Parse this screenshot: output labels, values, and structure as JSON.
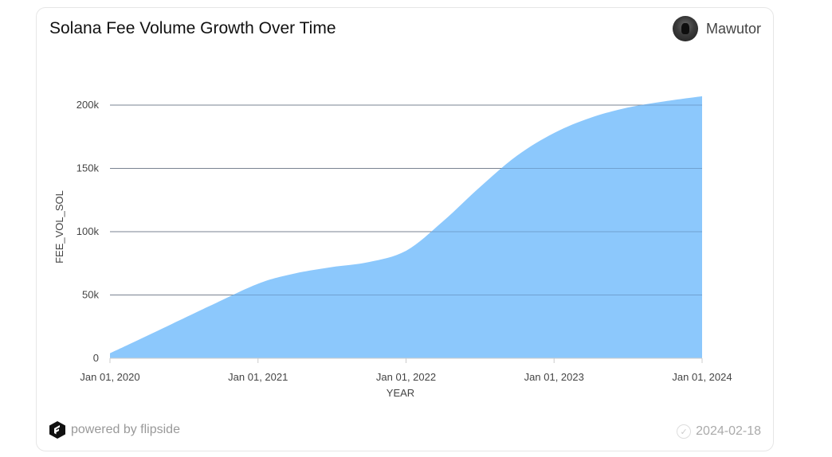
{
  "header": {
    "title": "Solana Fee Volume Growth Over Time",
    "author": "Mawutor"
  },
  "footer": {
    "powered_by": "powered by flipside",
    "date": "2024-02-18"
  },
  "colors": {
    "area_fill": "#8cc8fc",
    "grid": "#9a9a9a",
    "axis_text": "#444444"
  },
  "chart_data": {
    "type": "area",
    "title": "Solana Fee Volume Growth Over Time",
    "xlabel": "YEAR",
    "ylabel": "FEE_VOL_SOL",
    "x_ticks": [
      "Jan 01, 2020",
      "Jan 01, 2021",
      "Jan 01, 2022",
      "Jan 01, 2023",
      "Jan 01, 2024"
    ],
    "y_ticks": [
      "0",
      "50k",
      "100k",
      "150k",
      "200k"
    ],
    "y_tick_values": [
      0,
      50000,
      100000,
      150000,
      200000
    ],
    "ylim": [
      0,
      200000
    ],
    "grid": true,
    "series": [
      {
        "x": [
          "2020-01-01",
          "2020-03-01",
          "2020-06-01",
          "2020-09-01",
          "2021-01-01",
          "2021-04-01",
          "2021-07-01",
          "2021-10-01",
          "2022-01-01",
          "2022-04-01",
          "2022-07-01",
          "2022-10-01",
          "2023-01-01",
          "2023-04-01",
          "2023-07-01",
          "2023-10-01",
          "2024-01-01"
        ],
        "values": [
          4000,
          13000,
          27000,
          41000,
          59000,
          67000,
          72000,
          76000,
          85000,
          108000,
          135000,
          160000,
          178000,
          190000,
          198000,
          203000,
          207000
        ]
      }
    ]
  }
}
